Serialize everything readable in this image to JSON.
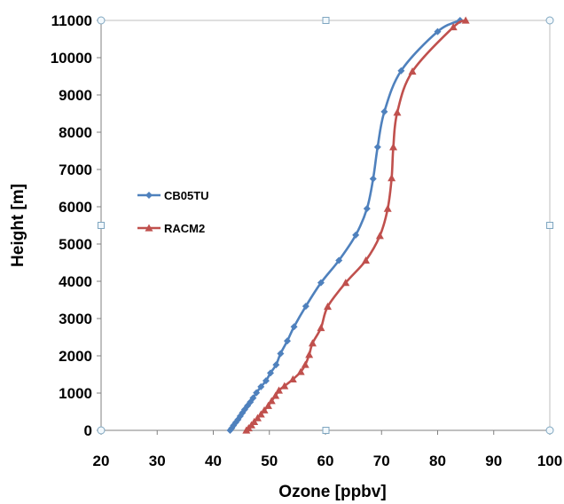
{
  "chart_data": {
    "type": "line",
    "xlabel": "Ozone [ppbv]",
    "ylabel": "Height [m]",
    "xlim": [
      20,
      100
    ],
    "ylim": [
      0,
      11000
    ],
    "x_ticks": [
      "20",
      "30",
      "40",
      "50",
      "60",
      "70",
      "80",
      "90",
      "100"
    ],
    "y_ticks": [
      "0",
      "1000",
      "2000",
      "3000",
      "4000",
      "5000",
      "6000",
      "7000",
      "8000",
      "9000",
      "10000",
      "11000"
    ],
    "grid": false,
    "legend_position": "left-middle",
    "series": [
      {
        "name": "CB05TU",
        "color": "#4F81BD",
        "marker": "diamond",
        "points": [
          [
            43.0,
            0
          ],
          [
            43.3,
            60
          ],
          [
            43.6,
            130
          ],
          [
            44.0,
            210
          ],
          [
            44.4,
            290
          ],
          [
            44.8,
            380
          ],
          [
            45.2,
            470
          ],
          [
            45.6,
            560
          ],
          [
            46.1,
            660
          ],
          [
            46.6,
            760
          ],
          [
            47.1,
            870
          ],
          [
            47.7,
            1010
          ],
          [
            48.5,
            1170
          ],
          [
            49.4,
            1330
          ],
          [
            50.2,
            1540
          ],
          [
            51.2,
            1760
          ],
          [
            52.0,
            2060
          ],
          [
            53.2,
            2400
          ],
          [
            54.4,
            2780
          ],
          [
            56.5,
            3330
          ],
          [
            59.2,
            3960
          ],
          [
            62.4,
            4560
          ],
          [
            65.4,
            5240
          ],
          [
            67.4,
            5950
          ],
          [
            68.5,
            6750
          ],
          [
            69.3,
            7600
          ],
          [
            70.5,
            8550
          ],
          [
            73.5,
            9650
          ],
          [
            80.0,
            10700
          ],
          [
            84.0,
            11000
          ]
        ]
      },
      {
        "name": "RACM2",
        "color": "#C0504D",
        "marker": "triangle",
        "points": [
          [
            45.9,
            0
          ],
          [
            46.3,
            60
          ],
          [
            46.8,
            140
          ],
          [
            47.3,
            230
          ],
          [
            47.9,
            330
          ],
          [
            48.5,
            430
          ],
          [
            49.1,
            540
          ],
          [
            49.8,
            660
          ],
          [
            50.4,
            790
          ],
          [
            51.1,
            930
          ],
          [
            51.7,
            1070
          ],
          [
            52.7,
            1190
          ],
          [
            54.2,
            1370
          ],
          [
            55.6,
            1570
          ],
          [
            56.4,
            1760
          ],
          [
            57.1,
            2030
          ],
          [
            57.7,
            2340
          ],
          [
            59.2,
            2750
          ],
          [
            60.4,
            3320
          ],
          [
            63.6,
            3960
          ],
          [
            67.2,
            4560
          ],
          [
            69.7,
            5220
          ],
          [
            71.1,
            5950
          ],
          [
            71.8,
            6770
          ],
          [
            72.1,
            7600
          ],
          [
            72.8,
            8530
          ],
          [
            75.5,
            9630
          ],
          [
            82.8,
            10820
          ],
          [
            85.0,
            11000
          ]
        ]
      }
    ]
  }
}
